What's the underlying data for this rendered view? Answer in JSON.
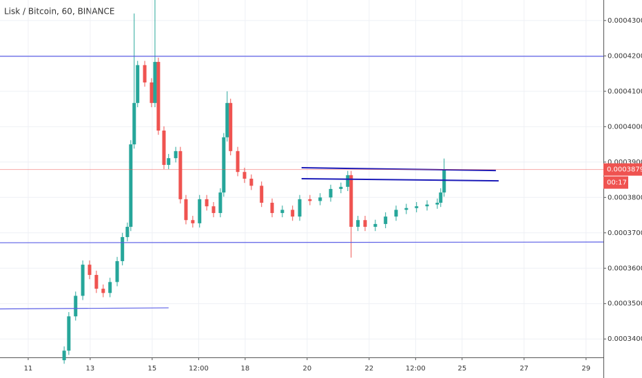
{
  "chart_data": {
    "type": "candlestick",
    "title": "Lisk / Bitcoin, 60, BINANCE",
    "x": [
      12.16,
      12.31,
      12.53,
      12.76,
      12.98,
      13.2,
      13.42,
      13.64,
      13.87,
      14.04,
      14.2,
      14.31,
      14.42,
      14.53,
      14.76,
      14.98,
      15.09,
      15.2,
      15.38,
      15.53,
      15.76,
      15.91,
      16.09,
      16.31,
      16.53,
      16.76,
      16.98,
      17.2,
      17.31,
      17.42,
      17.53,
      17.76,
      17.98,
      18.2,
      18.53,
      18.87,
      19.2,
      19.53,
      19.76,
      20.09,
      20.42,
      20.76,
      21.09,
      21.31,
      21.42,
      21.64,
      21.87,
      22.2,
      22.53,
      22.87,
      23.2,
      23.53,
      23.87,
      24.2,
      24.31,
      24.42
    ],
    "open": [
      0.000334,
      0.0003367,
      0.0003464,
      0.0003522,
      0.000361,
      0.0003581,
      0.0003542,
      0.000353,
      0.0003561,
      0.000362,
      0.0003688,
      0.0003717,
      0.000395,
      0.0004067,
      0.0004174,
      0.0004125,
      0.0004067,
      0.0004183,
      0.0003989,
      0.0003892,
      0.0003911,
      0.0003931,
      0.0003795,
      0.0003736,
      0.0003727,
      0.0003795,
      0.0003775,
      0.0003756,
      0.0003814,
      0.000397,
      0.0004067,
      0.0003931,
      0.0003872,
      0.0003853,
      0.0003833,
      0.0003785,
      0.0003756,
      0.0003765,
      0.0003746,
      0.0003795,
      0.000379,
      0.00038,
      0.0003824,
      0.000383,
      0.0003863,
      0.0003717,
      0.0003736,
      0.0003717,
      0.0003725,
      0.0003746,
      0.0003765,
      0.000377,
      0.0003775,
      0.000378,
      0.0003785,
      0.0003814
    ],
    "high": [
      0.0003379,
      0.0003476,
      0.0003534,
      0.0003622,
      0.0003622,
      0.0003593,
      0.0003554,
      0.0003573,
      0.0003632,
      0.00037,
      0.0003729,
      0.0003962,
      0.000432,
      0.0004186,
      0.0004186,
      0.0004137,
      0.0004358,
      0.0004195,
      0.0004001,
      0.0003923,
      0.0003943,
      0.0003943,
      0.0003807,
      0.0003748,
      0.0003807,
      0.0003807,
      0.0003787,
      0.0003826,
      0.0003982,
      0.00041,
      0.0004079,
      0.0003943,
      0.0003884,
      0.0003865,
      0.0003845,
      0.0003797,
      0.0003777,
      0.0003777,
      0.0003807,
      0.0003807,
      0.0003812,
      0.0003836,
      0.0003842,
      0.0003875,
      0.0003875,
      0.0003748,
      0.0003748,
      0.0003737,
      0.0003758,
      0.0003777,
      0.0003782,
      0.0003787,
      0.0003792,
      0.0003797,
      0.0003826,
      0.000391
    ],
    "low": [
      0.000333,
      0.0003355,
      0.0003452,
      0.000351,
      0.0003569,
      0.000353,
      0.0003518,
      0.0003518,
      0.0003549,
      0.0003608,
      0.0003676,
      0.0003705,
      0.0003938,
      0.0004055,
      0.0004113,
      0.0004055,
      0.0004055,
      0.0003977,
      0.000388,
      0.000388,
      0.0003899,
      0.0003783,
      0.0003724,
      0.0003715,
      0.0003715,
      0.0003763,
      0.0003744,
      0.0003744,
      0.0003802,
      0.0003958,
      0.0003919,
      0.000386,
      0.0003841,
      0.0003821,
      0.0003773,
      0.0003744,
      0.0003744,
      0.0003734,
      0.0003734,
      0.0003778,
      0.0003778,
      0.0003788,
      0.0003812,
      0.0003818,
      0.000363,
      0.0003705,
      0.0003705,
      0.0003705,
      0.0003713,
      0.0003734,
      0.0003753,
      0.0003758,
      0.0003763,
      0.0003768,
      0.0003773,
      0.0003802
    ],
    "close": [
      0.0003367,
      0.0003464,
      0.0003522,
      0.000361,
      0.0003581,
      0.0003542,
      0.000353,
      0.0003561,
      0.000362,
      0.0003688,
      0.0003717,
      0.000395,
      0.0004067,
      0.0004174,
      0.0004125,
      0.0004067,
      0.0004183,
      0.0003989,
      0.0003892,
      0.0003911,
      0.0003931,
      0.0003795,
      0.0003736,
      0.0003727,
      0.0003795,
      0.0003775,
      0.0003756,
      0.0003814,
      0.000397,
      0.0004067,
      0.0003931,
      0.0003872,
      0.0003853,
      0.0003833,
      0.0003785,
      0.0003756,
      0.0003765,
      0.0003746,
      0.0003795,
      0.000379,
      0.00038,
      0.0003824,
      0.000383,
      0.0003863,
      0.0003717,
      0.0003736,
      0.0003717,
      0.0003725,
      0.0003746,
      0.0003765,
      0.000377,
      0.0003775,
      0.000378,
      0.0003785,
      0.0003814,
      0.0003879
    ],
    "up_color": "#26a69a",
    "down_color": "#ef5350",
    "trend_lines": [
      {
        "x": [
          10.09,
          29.56
        ],
        "y": [
          0.0004199,
          0.0004199
        ],
        "color": "#5b5fe6"
      },
      {
        "x": [
          10.09,
          29.56
        ],
        "y": [
          0.0003672,
          0.0003674
        ],
        "color": "#5b5fe6"
      },
      {
        "x": [
          10.09,
          15.53
        ],
        "y": [
          0.0003485,
          0.0003488
        ],
        "color": "#5b5fe6"
      },
      {
        "x": [
          19.82,
          26.09
        ],
        "y": [
          0.0003884,
          0.0003876
        ],
        "color": "#1a1ab8"
      },
      {
        "x": [
          19.82,
          26.18
        ],
        "y": [
          0.0003853,
          0.0003847
        ],
        "color": "#1a1ab8"
      }
    ],
    "last_price": 0.0003879,
    "countdown": "00:17",
    "last_price_color": "#ef5350",
    "xlim": [
      10.09,
      29.56
    ],
    "ylim": [
      0.0003348,
      0.0004358
    ],
    "xticks": [
      11,
      13,
      15,
      {
        "value": 16.5,
        "label": "12:00"
      },
      18,
      20,
      22,
      {
        "value": 23.5,
        "label": "12:00"
      },
      25,
      27,
      29
    ],
    "yticks": [
      {
        "value": 0.00034,
        "label": "0.0003400"
      },
      {
        "value": 0.00035,
        "label": "0.0003500"
      },
      {
        "value": 0.00036,
        "label": "0.0003600"
      },
      {
        "value": 0.00037,
        "label": "0.0003700"
      },
      {
        "value": 0.00038,
        "label": "0.0003800"
      },
      {
        "value": 0.00039,
        "label": "0.0003900"
      },
      {
        "value": 0.0004,
        "label": "0.0004000"
      },
      {
        "value": 0.00041,
        "label": "0.0004100"
      },
      {
        "value": 0.00042,
        "label": "0.0004200"
      },
      {
        "value": 0.00043,
        "label": "0.0004300"
      }
    ],
    "grid": true
  }
}
